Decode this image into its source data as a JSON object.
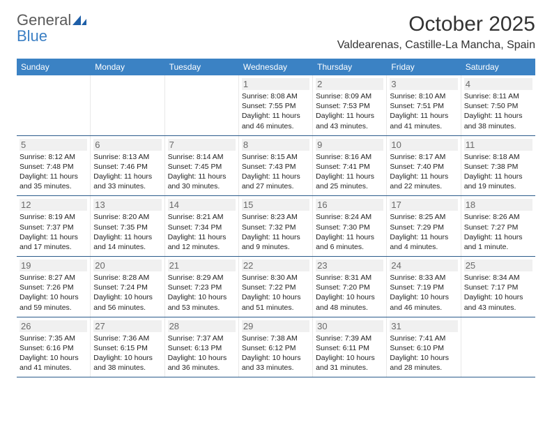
{
  "logo": {
    "text1": "General",
    "text2": "Blue"
  },
  "title": "October 2025",
  "location": "Valdearenas, Castille-La Mancha, Spain",
  "colors": {
    "header_bg": "#3b82c4",
    "header_text": "#ffffff",
    "week_border": "#2a5a8a",
    "daynum_bg": "#f0f0f0",
    "daynum_color": "#6a6a6a",
    "text_color": "#222222",
    "logo_gray": "#5a5a5a",
    "logo_blue": "#3b7fc4"
  },
  "weekdays": [
    "Sunday",
    "Monday",
    "Tuesday",
    "Wednesday",
    "Thursday",
    "Friday",
    "Saturday"
  ],
  "weeks": [
    [
      {
        "n": "",
        "sr": "",
        "ss": "",
        "dl": ""
      },
      {
        "n": "",
        "sr": "",
        "ss": "",
        "dl": ""
      },
      {
        "n": "",
        "sr": "",
        "ss": "",
        "dl": ""
      },
      {
        "n": "1",
        "sr": "Sunrise: 8:08 AM",
        "ss": "Sunset: 7:55 PM",
        "dl": "Daylight: 11 hours and 46 minutes."
      },
      {
        "n": "2",
        "sr": "Sunrise: 8:09 AM",
        "ss": "Sunset: 7:53 PM",
        "dl": "Daylight: 11 hours and 43 minutes."
      },
      {
        "n": "3",
        "sr": "Sunrise: 8:10 AM",
        "ss": "Sunset: 7:51 PM",
        "dl": "Daylight: 11 hours and 41 minutes."
      },
      {
        "n": "4",
        "sr": "Sunrise: 8:11 AM",
        "ss": "Sunset: 7:50 PM",
        "dl": "Daylight: 11 hours and 38 minutes."
      }
    ],
    [
      {
        "n": "5",
        "sr": "Sunrise: 8:12 AM",
        "ss": "Sunset: 7:48 PM",
        "dl": "Daylight: 11 hours and 35 minutes."
      },
      {
        "n": "6",
        "sr": "Sunrise: 8:13 AM",
        "ss": "Sunset: 7:46 PM",
        "dl": "Daylight: 11 hours and 33 minutes."
      },
      {
        "n": "7",
        "sr": "Sunrise: 8:14 AM",
        "ss": "Sunset: 7:45 PM",
        "dl": "Daylight: 11 hours and 30 minutes."
      },
      {
        "n": "8",
        "sr": "Sunrise: 8:15 AM",
        "ss": "Sunset: 7:43 PM",
        "dl": "Daylight: 11 hours and 27 minutes."
      },
      {
        "n": "9",
        "sr": "Sunrise: 8:16 AM",
        "ss": "Sunset: 7:41 PM",
        "dl": "Daylight: 11 hours and 25 minutes."
      },
      {
        "n": "10",
        "sr": "Sunrise: 8:17 AM",
        "ss": "Sunset: 7:40 PM",
        "dl": "Daylight: 11 hours and 22 minutes."
      },
      {
        "n": "11",
        "sr": "Sunrise: 8:18 AM",
        "ss": "Sunset: 7:38 PM",
        "dl": "Daylight: 11 hours and 19 minutes."
      }
    ],
    [
      {
        "n": "12",
        "sr": "Sunrise: 8:19 AM",
        "ss": "Sunset: 7:37 PM",
        "dl": "Daylight: 11 hours and 17 minutes."
      },
      {
        "n": "13",
        "sr": "Sunrise: 8:20 AM",
        "ss": "Sunset: 7:35 PM",
        "dl": "Daylight: 11 hours and 14 minutes."
      },
      {
        "n": "14",
        "sr": "Sunrise: 8:21 AM",
        "ss": "Sunset: 7:34 PM",
        "dl": "Daylight: 11 hours and 12 minutes."
      },
      {
        "n": "15",
        "sr": "Sunrise: 8:23 AM",
        "ss": "Sunset: 7:32 PM",
        "dl": "Daylight: 11 hours and 9 minutes."
      },
      {
        "n": "16",
        "sr": "Sunrise: 8:24 AM",
        "ss": "Sunset: 7:30 PM",
        "dl": "Daylight: 11 hours and 6 minutes."
      },
      {
        "n": "17",
        "sr": "Sunrise: 8:25 AM",
        "ss": "Sunset: 7:29 PM",
        "dl": "Daylight: 11 hours and 4 minutes."
      },
      {
        "n": "18",
        "sr": "Sunrise: 8:26 AM",
        "ss": "Sunset: 7:27 PM",
        "dl": "Daylight: 11 hours and 1 minute."
      }
    ],
    [
      {
        "n": "19",
        "sr": "Sunrise: 8:27 AM",
        "ss": "Sunset: 7:26 PM",
        "dl": "Daylight: 10 hours and 59 minutes."
      },
      {
        "n": "20",
        "sr": "Sunrise: 8:28 AM",
        "ss": "Sunset: 7:24 PM",
        "dl": "Daylight: 10 hours and 56 minutes."
      },
      {
        "n": "21",
        "sr": "Sunrise: 8:29 AM",
        "ss": "Sunset: 7:23 PM",
        "dl": "Daylight: 10 hours and 53 minutes."
      },
      {
        "n": "22",
        "sr": "Sunrise: 8:30 AM",
        "ss": "Sunset: 7:22 PM",
        "dl": "Daylight: 10 hours and 51 minutes."
      },
      {
        "n": "23",
        "sr": "Sunrise: 8:31 AM",
        "ss": "Sunset: 7:20 PM",
        "dl": "Daylight: 10 hours and 48 minutes."
      },
      {
        "n": "24",
        "sr": "Sunrise: 8:33 AM",
        "ss": "Sunset: 7:19 PM",
        "dl": "Daylight: 10 hours and 46 minutes."
      },
      {
        "n": "25",
        "sr": "Sunrise: 8:34 AM",
        "ss": "Sunset: 7:17 PM",
        "dl": "Daylight: 10 hours and 43 minutes."
      }
    ],
    [
      {
        "n": "26",
        "sr": "Sunrise: 7:35 AM",
        "ss": "Sunset: 6:16 PM",
        "dl": "Daylight: 10 hours and 41 minutes."
      },
      {
        "n": "27",
        "sr": "Sunrise: 7:36 AM",
        "ss": "Sunset: 6:15 PM",
        "dl": "Daylight: 10 hours and 38 minutes."
      },
      {
        "n": "28",
        "sr": "Sunrise: 7:37 AM",
        "ss": "Sunset: 6:13 PM",
        "dl": "Daylight: 10 hours and 36 minutes."
      },
      {
        "n": "29",
        "sr": "Sunrise: 7:38 AM",
        "ss": "Sunset: 6:12 PM",
        "dl": "Daylight: 10 hours and 33 minutes."
      },
      {
        "n": "30",
        "sr": "Sunrise: 7:39 AM",
        "ss": "Sunset: 6:11 PM",
        "dl": "Daylight: 10 hours and 31 minutes."
      },
      {
        "n": "31",
        "sr": "Sunrise: 7:41 AM",
        "ss": "Sunset: 6:10 PM",
        "dl": "Daylight: 10 hours and 28 minutes."
      },
      {
        "n": "",
        "sr": "",
        "ss": "",
        "dl": ""
      }
    ]
  ]
}
